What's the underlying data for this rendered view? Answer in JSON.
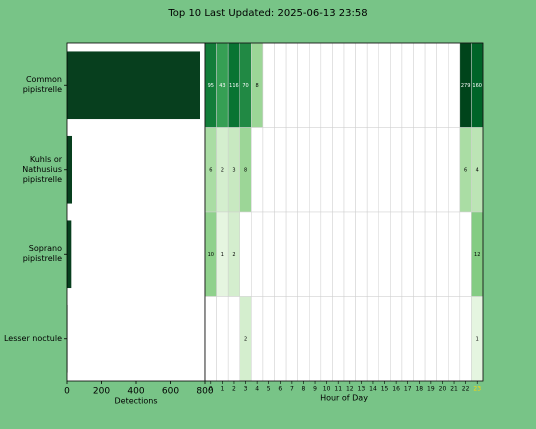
{
  "title": "Top 10 Last Updated: 2025-06-13 23:58",
  "chart_data": [
    {
      "type": "barh",
      "categories": [
        "Common\npipistrelle",
        "Kuhls or\nNathusius\npipistrelle",
        "Soprano\npipistrelle",
        "Lesser noctule"
      ],
      "values": [
        771,
        29,
        25,
        3
      ],
      "color": "#073f1e",
      "xlim": [
        0,
        800
      ],
      "xticks": [
        0,
        200,
        400,
        600,
        800
      ],
      "xlabel": "Detections"
    },
    {
      "type": "heatmap",
      "x": [
        0,
        1,
        2,
        3,
        4,
        5,
        6,
        7,
        8,
        9,
        10,
        11,
        12,
        13,
        14,
        15,
        16,
        17,
        18,
        19,
        20,
        21,
        22,
        23
      ],
      "values": [
        [
          95,
          43,
          116,
          70,
          8,
          0,
          0,
          0,
          0,
          0,
          0,
          0,
          0,
          0,
          0,
          0,
          0,
          0,
          0,
          0,
          0,
          0,
          279,
          160
        ],
        [
          6,
          2,
          3,
          8,
          0,
          0,
          0,
          0,
          0,
          0,
          0,
          0,
          0,
          0,
          0,
          0,
          0,
          0,
          0,
          0,
          0,
          0,
          6,
          4
        ],
        [
          10,
          1,
          2,
          0,
          0,
          0,
          0,
          0,
          0,
          0,
          0,
          0,
          0,
          0,
          0,
          0,
          0,
          0,
          0,
          0,
          0,
          0,
          0,
          12
        ],
        [
          0,
          0,
          0,
          2,
          0,
          0,
          0,
          0,
          0,
          0,
          0,
          0,
          0,
          0,
          0,
          0,
          0,
          0,
          0,
          0,
          0,
          0,
          0,
          1
        ]
      ],
      "log_scale": true,
      "colormap": [
        "#f7fcf5",
        "#e5f5e0",
        "#c7e9c0",
        "#a1d99b",
        "#74c476",
        "#41ab5d",
        "#238b45",
        "#006d2c",
        "#00441b"
      ],
      "highlight_hour": 23,
      "highlight_color": "#ffd700",
      "xlabel": "Hour of Day"
    }
  ]
}
